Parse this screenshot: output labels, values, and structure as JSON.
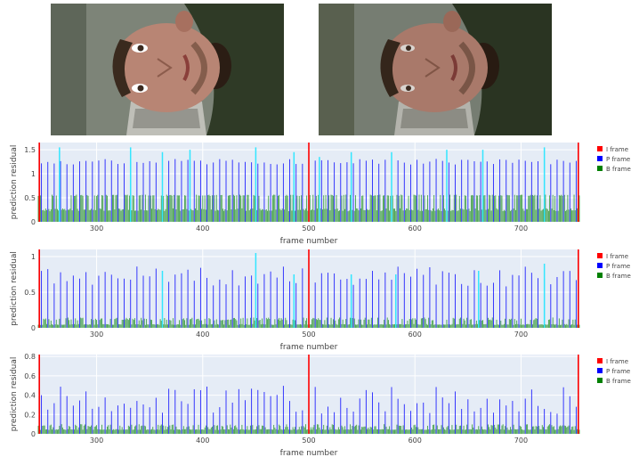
{
  "photos": [
    {
      "icon": "face-photo-original"
    },
    {
      "icon": "face-photo-compressed"
    }
  ],
  "colors": {
    "plot_bg": "#e5ecf6",
    "grid": "#ffffff",
    "i_frame": "#ff0000",
    "p_frame": "#0000ff",
    "b_frame": "#008000",
    "skip_frame": "#33e6ff"
  },
  "chart_data": [
    {
      "type": "bar",
      "xlabel": "frame number",
      "ylabel": "prediction residual",
      "xlim": [
        245,
        755
      ],
      "ylim": [
        0,
        1.65
      ],
      "x_ticks": [
        300,
        400,
        500,
        600,
        700
      ],
      "y_ticks": [
        0,
        0.5,
        1,
        1.5
      ],
      "y_tick_labels": [
        "0",
        "0.5",
        "1",
        "1.5"
      ],
      "legend": {
        "position": "right",
        "entries": [
          "I frame",
          "P frame",
          "B frame"
        ]
      },
      "series": [
        {
          "name": "I frame",
          "x": [
            246,
            500,
            754
          ],
          "values": [
            1.65,
            1.65,
            1.65
          ]
        },
        {
          "name": "P frame",
          "period": 6,
          "offset": 2,
          "base": 1.25,
          "amplitude": 0.06
        },
        {
          "name": "B frame",
          "base": 0.55,
          "amplitude": 0.03,
          "floor": 0.22
        },
        {
          "name": "",
          "x": [
            265,
            332,
            362,
            388,
            450,
            486,
            510,
            540,
            578,
            630,
            664,
            722
          ],
          "values": [
            1.55,
            1.55,
            1.45,
            1.5,
            1.55,
            1.45,
            1.35,
            1.45,
            1.45,
            1.5,
            1.5,
            1.55
          ]
        }
      ]
    },
    {
      "type": "bar",
      "xlabel": "frame number",
      "ylabel": "prediction residual",
      "xlim": [
        245,
        755
      ],
      "ylim": [
        0,
        1.1
      ],
      "x_ticks": [
        300,
        400,
        500,
        600,
        700
      ],
      "y_ticks": [
        0,
        0.5,
        1
      ],
      "y_tick_labels": [
        "0",
        "0.5",
        "1"
      ],
      "legend": {
        "position": "right",
        "entries": [
          "I frame",
          "P frame",
          "B frame"
        ]
      },
      "series": [
        {
          "name": "I frame",
          "x": [
            246,
            500,
            754
          ],
          "values": [
            1.1,
            1.1,
            1.1
          ]
        },
        {
          "name": "P frame",
          "period": 6,
          "offset": 2,
          "base": 0.72,
          "amplitude": 0.14
        },
        {
          "name": "B frame",
          "base": 0.12,
          "amplitude": 0.05,
          "floor": 0.04
        },
        {
          "name": "",
          "x": [
            362,
            450,
            486,
            540,
            582,
            660,
            722
          ],
          "values": [
            0.8,
            1.05,
            0.75,
            0.75,
            0.75,
            0.8,
            0.9
          ]
        }
      ]
    },
    {
      "type": "bar",
      "xlabel": "frame number",
      "ylabel": "prediction residual",
      "xlim": [
        245,
        755
      ],
      "ylim": [
        0,
        0.82
      ],
      "x_ticks": [
        300,
        400,
        500,
        600,
        700
      ],
      "y_ticks": [
        0,
        0.2,
        0.4,
        0.6,
        0.8
      ],
      "y_tick_labels": [
        "0",
        "0.2",
        "0.4",
        "0.6",
        "0.8"
      ],
      "legend": {
        "position": "right",
        "entries": [
          "I frame",
          "P frame",
          "B frame"
        ]
      },
      "series": [
        {
          "name": "I frame",
          "x": [
            246,
            500,
            754
          ],
          "values": [
            0.82,
            0.82,
            0.82
          ]
        },
        {
          "name": "P frame",
          "period": 6,
          "offset": 2,
          "base": 0.35,
          "amplitude": 0.15
        },
        {
          "name": "B frame",
          "base": 0.08,
          "amplitude": 0.04,
          "floor": 0.04
        },
        {
          "name": "",
          "x": [],
          "values": []
        }
      ]
    }
  ]
}
